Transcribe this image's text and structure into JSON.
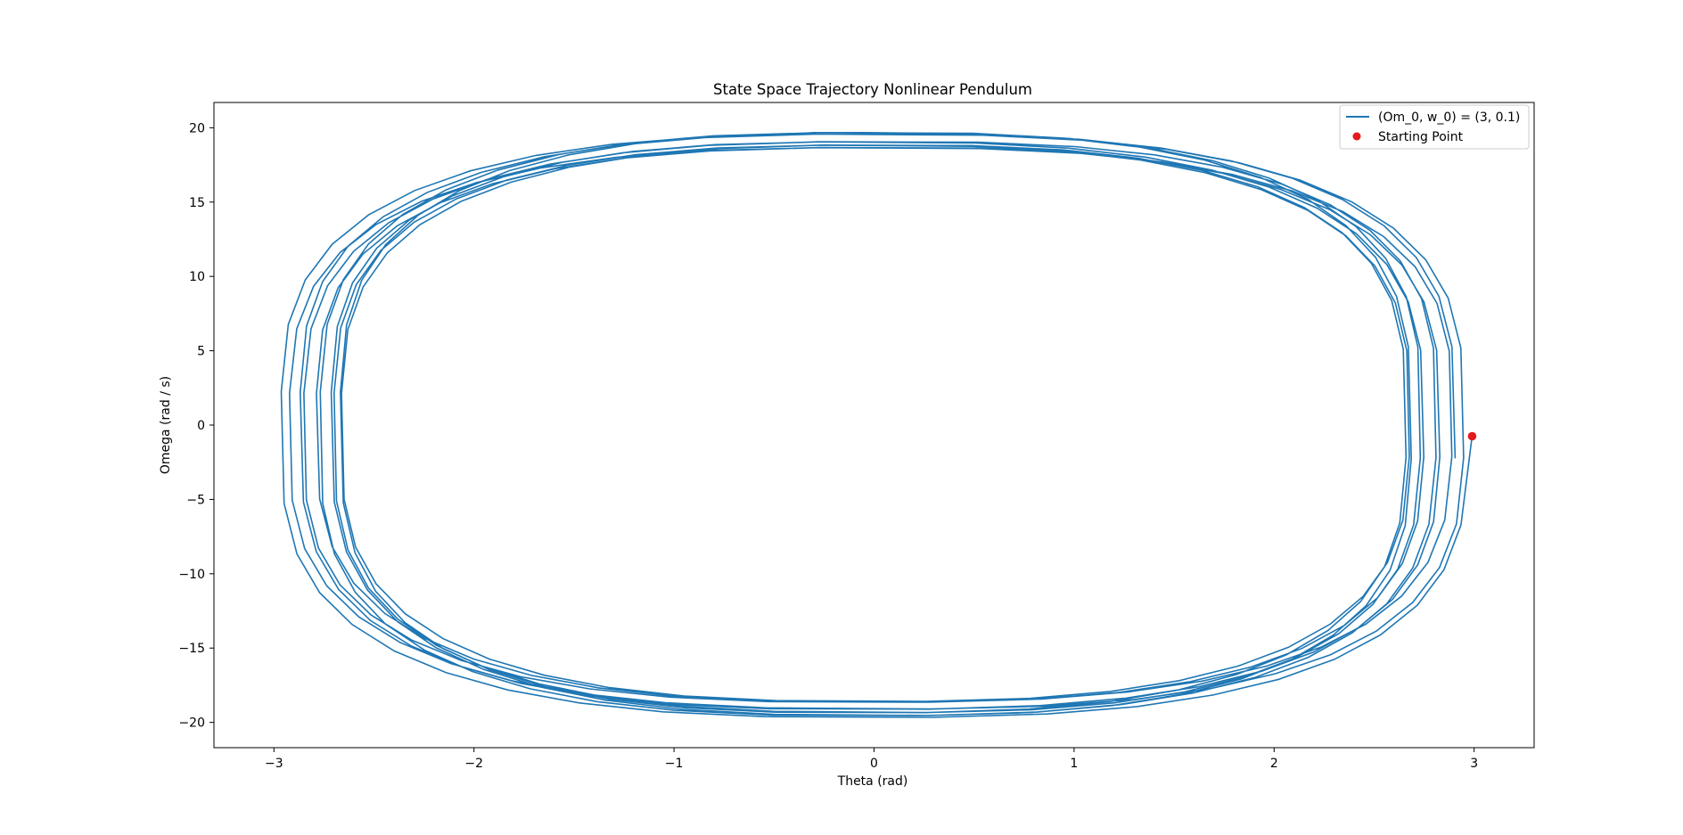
{
  "chart_data": {
    "type": "line",
    "title": "State Space Trajectory Nonlinear Pendulum",
    "xlabel": "Theta (rad)",
    "ylabel": "Omega (rad / s)",
    "xlim": [
      -3.3,
      3.3
    ],
    "ylim": [
      -21.7,
      21.7
    ],
    "xticks": [
      -3,
      -2,
      -1,
      0,
      1,
      2,
      3
    ],
    "xtick_labels": [
      "−3",
      "−2",
      "−1",
      "0",
      "1",
      "2",
      "3"
    ],
    "yticks": [
      -20,
      -15,
      -10,
      -5,
      0,
      5,
      10,
      15,
      20
    ],
    "ytick_labels": [
      "−20",
      "−15",
      "−10",
      "−5",
      "0",
      "5",
      "10",
      "15",
      "20"
    ],
    "grid": false,
    "legend_position": "top-right",
    "series": [
      {
        "name": "(Om_0, w_0) = (3, 0.1)",
        "color": "#1f77b4",
        "description": "closed orbit traced repeatedly with slowly varying amplitude",
        "theta_max_range": [
          2.66,
          2.97
        ],
        "omega_max_range": [
          18.6,
          19.7
        ],
        "loops": 10
      },
      {
        "name": "Starting Point",
        "type": "scatter",
        "color": "#e41a1c",
        "points": [
          {
            "x": 2.99,
            "y": -0.75
          }
        ]
      }
    ]
  }
}
